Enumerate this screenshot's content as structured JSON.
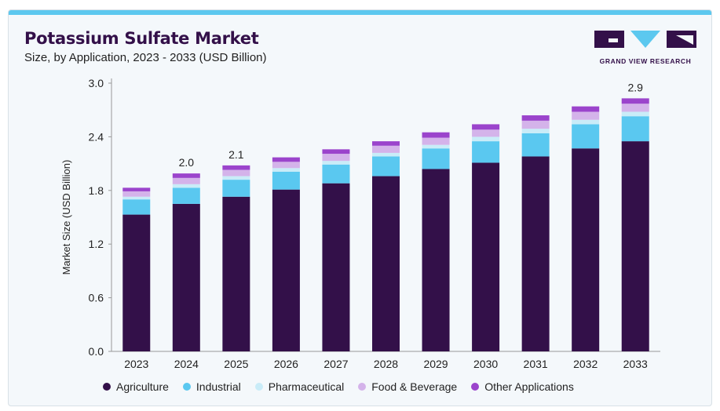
{
  "header": {
    "title": "Potassium Sulfate Market",
    "subtitle": "Size, by Application, 2023 - 2033 (USD Billion)",
    "logo_text": "GRAND VIEW RESEARCH"
  },
  "colors": {
    "accent_bar": "#5cc8ef",
    "title": "#331049",
    "Agriculture": "#331049",
    "Industrial": "#5ac8f0",
    "Pharmaceutical": "#c9ecf8",
    "Food & Beverage": "#d4b3ea",
    "Other Applications": "#9b44cc"
  },
  "chart_data": {
    "type": "bar",
    "stacked": true,
    "categories": [
      "2023",
      "2024",
      "2025",
      "2026",
      "2027",
      "2028",
      "2029",
      "2030",
      "2031",
      "2032",
      "2033"
    ],
    "series": [
      {
        "name": "Agriculture",
        "values": [
          1.53,
          1.65,
          1.73,
          1.81,
          1.88,
          1.96,
          2.04,
          2.11,
          2.18,
          2.27,
          2.35
        ]
      },
      {
        "name": "Industrial",
        "values": [
          0.17,
          0.18,
          0.19,
          0.2,
          0.21,
          0.22,
          0.23,
          0.24,
          0.26,
          0.27,
          0.28
        ]
      },
      {
        "name": "Pharmaceutical",
        "values": [
          0.03,
          0.04,
          0.04,
          0.04,
          0.04,
          0.04,
          0.04,
          0.05,
          0.05,
          0.05,
          0.05
        ]
      },
      {
        "name": "Food & Beverage",
        "values": [
          0.06,
          0.07,
          0.07,
          0.07,
          0.08,
          0.08,
          0.08,
          0.08,
          0.09,
          0.09,
          0.09
        ]
      },
      {
        "name": "Other Applications",
        "values": [
          0.04,
          0.05,
          0.05,
          0.05,
          0.05,
          0.05,
          0.06,
          0.06,
          0.06,
          0.06,
          0.06
        ]
      }
    ],
    "total_labels": [
      {
        "category": "2024",
        "label": "2.0"
      },
      {
        "category": "2025",
        "label": "2.1"
      },
      {
        "category": "2033",
        "label": "2.9"
      }
    ],
    "ylabel": "Market Size (USD Billion)",
    "xlabel": "",
    "ylim": [
      0,
      3.0
    ],
    "yticks": [
      "0.0",
      "0.6",
      "1.2",
      "1.8",
      "2.4",
      "3.0"
    ],
    "grid": false,
    "legend_position": "bottom"
  }
}
